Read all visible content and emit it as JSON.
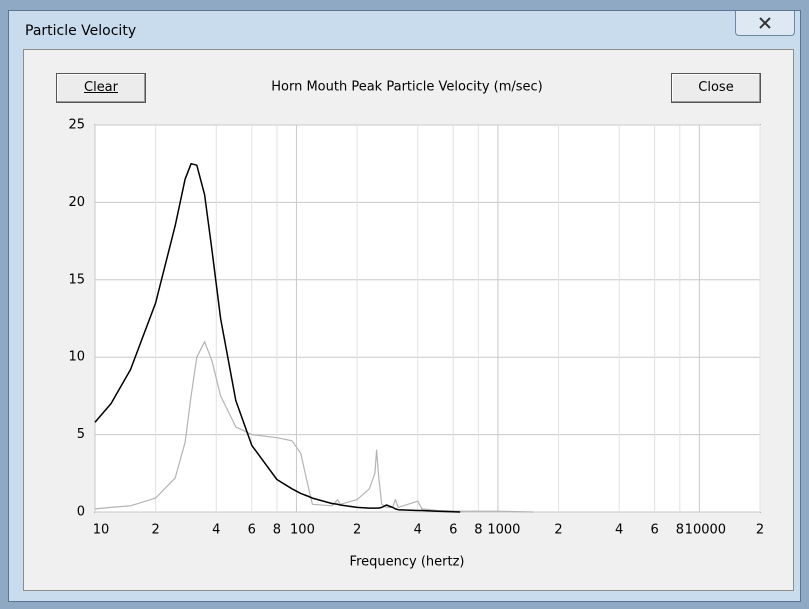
{
  "window": {
    "title": "Particle Velocity"
  },
  "buttons": {
    "clear": "Clear",
    "close": "Close"
  },
  "chart_data": {
    "type": "line",
    "title": "Horn Mouth Peak Particle Velocity (m/sec)",
    "x_label": "Frequency (hertz)",
    "x_scale": "log",
    "grid": true,
    "xlim": [
      10,
      20000
    ],
    "ylim": [
      0,
      25
    ],
    "yticks": [
      0,
      5,
      10,
      15,
      20,
      25
    ],
    "xticks": [
      10,
      {
        "value": 20,
        "label": "2"
      },
      {
        "value": 40,
        "label": "4"
      },
      {
        "value": 60,
        "label": "6"
      },
      {
        "value": 80,
        "label": "8"
      },
      100,
      {
        "value": 200,
        "label": "2"
      },
      {
        "value": 400,
        "label": "4"
      },
      {
        "value": 600,
        "label": "6"
      },
      {
        "value": 800,
        "label": "8"
      },
      1000,
      {
        "value": 2000,
        "label": "2"
      },
      {
        "value": 4000,
        "label": "4"
      },
      {
        "value": 6000,
        "label": "6"
      },
      {
        "value": 8000,
        "label": "8"
      },
      10000,
      {
        "value": 20000,
        "label": "2"
      }
    ],
    "x": [
      10,
      12,
      15,
      20,
      25,
      28,
      30,
      32,
      35,
      38,
      42,
      50,
      60,
      80,
      95,
      105,
      115,
      120,
      150,
      160,
      165,
      200,
      230,
      245,
      250,
      255,
      265,
      280,
      300,
      310,
      320,
      400,
      420,
      500,
      650,
      1000,
      1500
    ],
    "series": [
      {
        "color": "#000000",
        "values": [
          5.8,
          7,
          9.2,
          13.5,
          18.5,
          21.5,
          22.5,
          22.4,
          20.5,
          17,
          12.5,
          7.2,
          4.3,
          2.1,
          1.5,
          1.2,
          1.0,
          0.9,
          0.55,
          0.5,
          0.45,
          0.3,
          0.25,
          0.25,
          0.25,
          0.25,
          0.3,
          0.45,
          0.3,
          0.2,
          0.15,
          0.1,
          0.1,
          0.05,
          0,
          null,
          null
        ]
      },
      {
        "color": "#b4b4b4",
        "values": [
          0.2,
          0.3,
          0.4,
          0.9,
          2.2,
          4.5,
          7.5,
          10,
          11,
          9.8,
          7.5,
          5.5,
          5,
          4.8,
          4.6,
          3.8,
          1.5,
          0.5,
          0.4,
          0.8,
          0.5,
          0.8,
          1.5,
          2.5,
          4,
          2.5,
          0.5,
          0.3,
          0.3,
          0.8,
          0.3,
          0.7,
          0.2,
          0.1,
          0.05,
          0.05,
          0
        ]
      }
    ]
  }
}
